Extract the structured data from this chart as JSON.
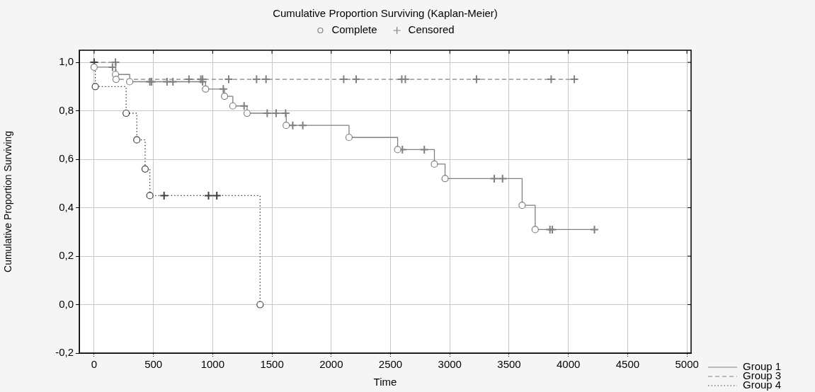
{
  "chart_data": {
    "type": "step",
    "title": "Cumulative Proportion Surviving (Kaplan-Meier)",
    "xlabel": "Time",
    "ylabel": "Cumulative Proportion Surviving",
    "xlim": [
      -125,
      5035
    ],
    "xticks": [
      0,
      500,
      1000,
      1500,
      2000,
      2500,
      3000,
      3500,
      4000,
      4500,
      5000
    ],
    "ylim": [
      -0.2,
      1.05
    ],
    "yticks": [
      {
        "value": -0.2,
        "label": "-0,2"
      },
      {
        "value": 0,
        "label": "0,0"
      },
      {
        "value": 0.2,
        "label": "0,2"
      },
      {
        "value": 0.4,
        "label": "0,4"
      },
      {
        "value": 0.6,
        "label": "0,6"
      },
      {
        "value": 0.8,
        "label": "0,8"
      },
      {
        "value": 1,
        "label": "1,0"
      }
    ],
    "grid": true,
    "legend": "bottom right",
    "series": [
      {
        "name": "Group 1",
        "color": "#808080",
        "line_style": "solid",
        "x": [
          0,
          180,
          300,
          940,
          1100,
          1170,
          1290,
          1620,
          2150,
          2560,
          2870,
          2960,
          3610,
          3720,
          4220
        ],
        "values": [
          0.98,
          0.95,
          0.92,
          0.89,
          0.86,
          0.82,
          0.79,
          0.74,
          0.69,
          0.64,
          0.58,
          0.52,
          0.41,
          0.31,
          0.31
        ]
      },
      {
        "name": "Group 3",
        "color": "#808080",
        "line_style": "dashed",
        "x": [
          0,
          185,
          4050
        ],
        "values": [
          1.0,
          0.93,
          0.93
        ]
      },
      {
        "name": "Group 4",
        "color": "#404040",
        "line_style": "dotted",
        "x": [
          0,
          10,
          270,
          360,
          430,
          470,
          1400
        ],
        "values": [
          1.0,
          0.9,
          0.79,
          0.68,
          0.56,
          0.45,
          0.0
        ]
      },
      {
        "name": "Complete",
        "type": "scatter",
        "marker": "circle",
        "color": "#808080",
        "x": [
          0,
          180,
          300,
          940,
          1100,
          1170,
          1290,
          1620,
          2150,
          2560,
          2870,
          2960,
          3610,
          3720,
          185,
          10,
          270,
          360,
          430,
          470,
          1400
        ],
        "values": [
          0.98,
          0.95,
          0.92,
          0.89,
          0.86,
          0.82,
          0.79,
          0.74,
          0.69,
          0.64,
          0.58,
          0.52,
          0.41,
          0.31,
          0.93,
          0.9,
          0.79,
          0.68,
          0.56,
          0.45,
          0.0
        ],
        "colors": [
          "#808080",
          "#808080",
          "#808080",
          "#808080",
          "#808080",
          "#808080",
          "#808080",
          "#808080",
          "#808080",
          "#808080",
          "#808080",
          "#808080",
          "#808080",
          "#808080",
          "#808080",
          "#404040",
          "#404040",
          "#404040",
          "#404040",
          "#404040",
          "#404040"
        ]
      },
      {
        "name": "Censored",
        "type": "scatter",
        "marker": "cross",
        "color": "#808080",
        "x": [
          155,
          470,
          485,
          615,
          665,
          915,
          1090,
          1265,
          1460,
          1535,
          1615,
          1675,
          1760,
          2600,
          2785,
          3375,
          3445,
          3845,
          3865,
          4220,
          180,
          800,
          900,
          915,
          1135,
          1370,
          1450,
          2105,
          2210,
          2595,
          2625,
          3225,
          3855,
          4050,
          0,
          590,
          965,
          1035
        ],
        "values": [
          0.98,
          0.92,
          0.92,
          0.92,
          0.92,
          0.92,
          0.89,
          0.82,
          0.79,
          0.79,
          0.79,
          0.74,
          0.74,
          0.64,
          0.64,
          0.52,
          0.52,
          0.31,
          0.31,
          0.31,
          1.0,
          0.93,
          0.93,
          0.93,
          0.93,
          0.93,
          0.93,
          0.93,
          0.93,
          0.93,
          0.93,
          0.93,
          0.93,
          0.93,
          1.0,
          0.45,
          0.45,
          0.45
        ],
        "colors": [
          "#808080",
          "#808080",
          "#808080",
          "#808080",
          "#808080",
          "#808080",
          "#808080",
          "#808080",
          "#808080",
          "#808080",
          "#808080",
          "#808080",
          "#808080",
          "#808080",
          "#808080",
          "#808080",
          "#808080",
          "#808080",
          "#808080",
          "#808080",
          "#808080",
          "#808080",
          "#808080",
          "#808080",
          "#808080",
          "#808080",
          "#808080",
          "#808080",
          "#808080",
          "#808080",
          "#808080",
          "#808080",
          "#808080",
          "#808080",
          "#404040",
          "#404040",
          "#404040",
          "#404040"
        ]
      }
    ]
  }
}
